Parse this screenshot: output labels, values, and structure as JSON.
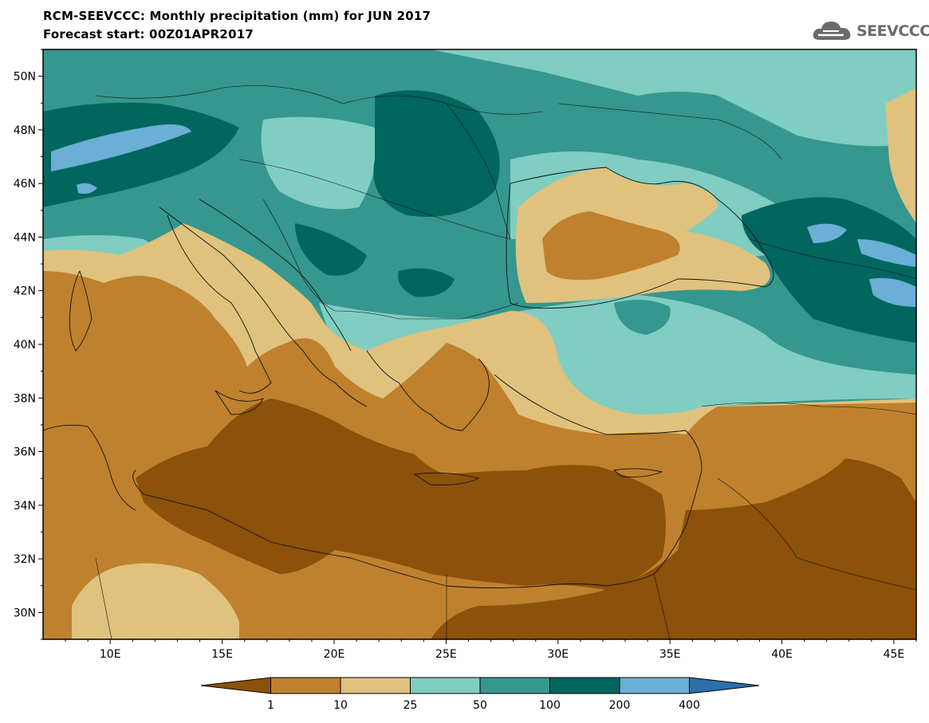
{
  "title": "RCM-SEEVCCC: Monthly precipitation (mm) for JUN 2017",
  "subtitle": "Forecast start: 00Z01APR2017",
  "logo_text": "SEEVCCC",
  "map": {
    "lon_range": [
      7,
      46
    ],
    "lat_range": [
      29,
      51
    ],
    "lat_labels": [
      "50N",
      "48N",
      "46N",
      "44N",
      "42N",
      "40N",
      "38N",
      "36N",
      "34N",
      "32N",
      "30N"
    ],
    "lon_labels": [
      "10E",
      "15E",
      "20E",
      "25E",
      "30E",
      "35E",
      "40E",
      "45E"
    ]
  },
  "colorbar": {
    "colors": [
      "#8c510a",
      "#bf812d",
      "#dfc27d",
      "#80cdc1",
      "#35978f",
      "#01665e",
      "#6baed6",
      "#2c6fab"
    ],
    "labels": [
      "1",
      "10",
      "25",
      "50",
      "100",
      "200",
      "400"
    ]
  }
}
